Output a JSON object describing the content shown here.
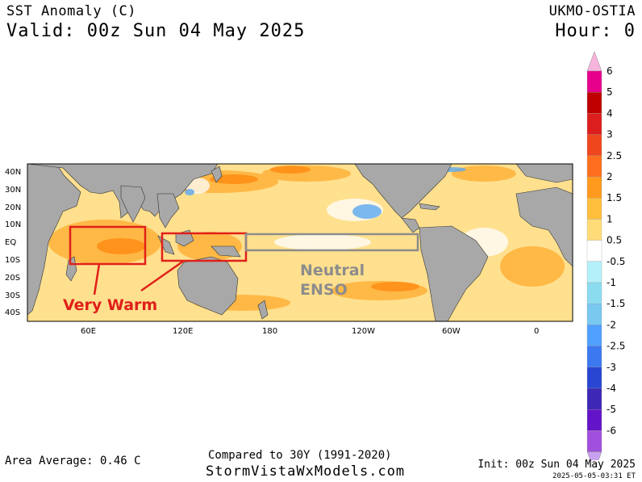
{
  "header": {
    "title": "SST Anomaly (C)",
    "valid": "Valid: 00z Sun 04 May 2025",
    "model": "UKMO-OSTIA",
    "hour": "Hour: 0"
  },
  "map": {
    "lat_labels": [
      "40N",
      "30N",
      "20N",
      "10N",
      "EQ",
      "10S",
      "20S",
      "30S",
      "40S"
    ],
    "lon_labels": [
      "60E",
      "120E",
      "180",
      "120W",
      "60W",
      "0"
    ],
    "annotations": {
      "very_warm": "Very Warm",
      "neutral_1": "Neutral",
      "neutral_2": "ENSO"
    },
    "colors": {
      "ocean_warm": "#ffd27a",
      "ocean_hot": "#ff9a1f",
      "land": "#a8a8a8",
      "box_red": "#e0201a",
      "box_gray": "#8c8c8c",
      "cool": "#5aa8f0"
    }
  },
  "colorbar": {
    "labels": [
      "6",
      "5",
      "4",
      "3",
      "2.5",
      "2",
      "1.5",
      "1",
      "0.5",
      "-0.5",
      "-1",
      "-1.5",
      "-2",
      "-2.5",
      "-3",
      "-4",
      "-5",
      "-6"
    ],
    "colors": [
      "#e6008c",
      "#c00000",
      "#dc1e1e",
      "#f0461e",
      "#ff6e1e",
      "#ff9a1e",
      "#ffbe3c",
      "#ffdc78",
      "#ffffff",
      "#b4f0fa",
      "#8cdcf0",
      "#78c8f0",
      "#50a0ff",
      "#3c78f0",
      "#2846d2",
      "#3c28b4",
      "#6414c8",
      "#a050dc"
    ]
  },
  "footer": {
    "area_average": "Area Average: 0.46 C",
    "compared": "Compared to 30Y (1991-2020)",
    "site": "StormVistaWxModels.com",
    "init": "Init: 00z Sun 04 May 2025",
    "timestamp": "2025-05-05-03:31 ET"
  }
}
